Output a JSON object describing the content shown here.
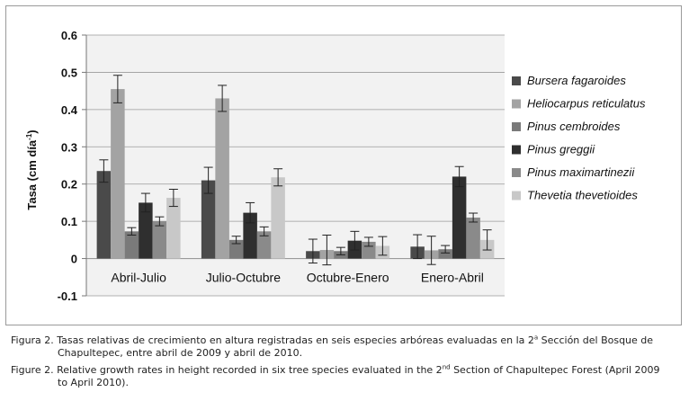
{
  "chart_data": {
    "type": "bar",
    "title": "",
    "xlabel": "",
    "ylabel": "Tasa (cm día -1)",
    "ylabel_main": "Tasa (cm día",
    "ylabel_sup": "-1",
    "ylabel_close": ")",
    "ylim": [
      -0.1,
      0.6
    ],
    "yticks": [
      "-0.1",
      "0",
      "0.1",
      "0.2",
      "0.3",
      "0.4",
      "0.5",
      "0.6"
    ],
    "ytick_values": [
      -0.1,
      0,
      0.1,
      0.2,
      0.3,
      0.4,
      0.5,
      0.6
    ],
    "grid": true,
    "legend_position": "right",
    "categories": [
      "Abril-Julio",
      "Julio-Octubre",
      "Octubre-Enero",
      "Enero-Abril"
    ],
    "series": [
      {
        "name": "Bursera fagaroides",
        "color": "#4a4a4a",
        "values": [
          0.235,
          0.21,
          0.02,
          0.032
        ],
        "errors": [
          0.03,
          0.035,
          0.032,
          0.032
        ]
      },
      {
        "name": "Heliocarpus reticulatus",
        "color": "#a3a3a3",
        "values": [
          0.455,
          0.43,
          0.023,
          0.022
        ],
        "errors": [
          0.037,
          0.035,
          0.04,
          0.038
        ]
      },
      {
        "name": "Pinus cembroides",
        "color": "#7a7a7a",
        "values": [
          0.073,
          0.05,
          0.02,
          0.025
        ],
        "errors": [
          0.01,
          0.01,
          0.01,
          0.01
        ]
      },
      {
        "name": "Pinus greggii",
        "color": "#2f2f2f",
        "values": [
          0.15,
          0.123,
          0.048,
          0.22
        ],
        "errors": [
          0.025,
          0.027,
          0.025,
          0.027
        ]
      },
      {
        "name": "Pinus maximartinezii",
        "color": "#8a8a8a",
        "values": [
          0.1,
          0.073,
          0.045,
          0.11
        ],
        "errors": [
          0.012,
          0.012,
          0.012,
          0.012
        ]
      },
      {
        "name": "Thevetia thevetioides",
        "color": "#c8c8c8",
        "values": [
          0.163,
          0.218,
          0.034,
          0.05
        ],
        "errors": [
          0.023,
          0.023,
          0.025,
          0.027
        ]
      }
    ]
  },
  "caption": {
    "es_prefix": "Figura 2. Tasas relativas de crecimiento en altura registradas en seis especies arbóreas evaluadas en la 2",
    "es_sup": "a",
    "es_rest": " Sección del Bosque de",
    "es_line2": "Chapultepec, entre abril de 2009 y abril de 2010.",
    "en_prefix": "Figure 2. Relative growth rates in height recorded in six tree species evaluated in the 2",
    "en_sup": "nd",
    "en_rest": " Section of Chapultepec Forest (April 2009",
    "en_line2": "to April 2010)."
  }
}
